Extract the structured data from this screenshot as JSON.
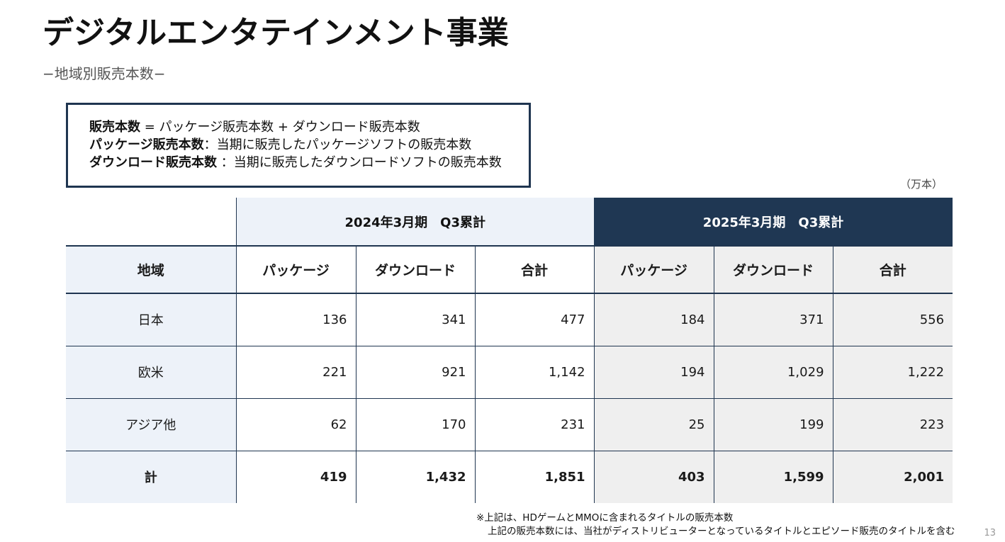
{
  "title": "デジタルエンタテインメント事業",
  "subtitle": "−地域別販売本数−",
  "definitions": [
    {
      "term": "販売本数",
      "sep": " = ",
      "text": "パッケージ販売本数 + ダウンロード販売本数"
    },
    {
      "term": "パッケージ販売本数",
      "sep": "：",
      "text": "当期に販売したパッケージソフトの販売本数"
    },
    {
      "term": "ダウンロード販売本数",
      "sep": " ：",
      "text": "当期に販売したダウンロードソフトの販売本数"
    }
  ],
  "unit": "（万本）",
  "table": {
    "period_2024": "2024年3月期　Q3累計",
    "period_2025": "2025年3月期　Q3累計",
    "region_header": "地域",
    "col_package": "パッケージ",
    "col_download": "ダウンロード",
    "col_total": "合計",
    "rows": [
      {
        "region": "日本",
        "v": [
          "136",
          "341",
          "477",
          "184",
          "371",
          "556"
        ]
      },
      {
        "region": "欧米",
        "v": [
          "221",
          "921",
          "1,142",
          "194",
          "1,029",
          "1,222"
        ]
      },
      {
        "region": "アジア他",
        "v": [
          "62",
          "170",
          "231",
          "25",
          "199",
          "223"
        ]
      },
      {
        "region": "計",
        "v": [
          "419",
          "1,432",
          "1,851",
          "403",
          "1,599",
          "2,001"
        ]
      }
    ]
  },
  "footnote": {
    "line1": "※上記は、HDゲームとMMOに含まれるタイトルの販売本数",
    "line2": "上記の販売本数には、当社がディストリビューターとなっているタイトルとエピソード販売のタイトルを含む"
  },
  "page_number": "13",
  "colors": {
    "navy": "#1f3753",
    "light_blue": "#edf2f9",
    "light_gray": "#efefef"
  }
}
